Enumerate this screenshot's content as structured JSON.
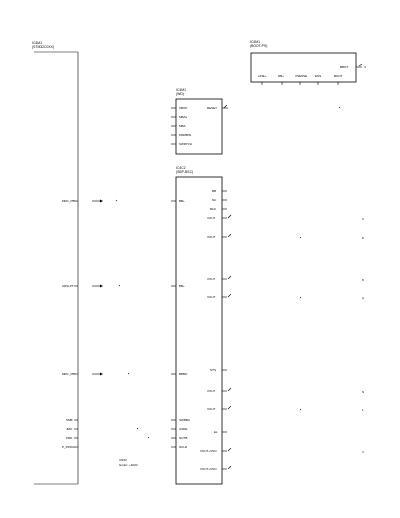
{
  "components": {
    "ic_left": {
      "ref": "IC4M1",
      "part": "(STM32C0XX)"
    },
    "ic_top": {
      "ref": "IC4M1",
      "part": "(BOOT-PS)"
    },
    "ic_mid": {
      "ref": "IC4M1",
      "part": "(WD)"
    },
    "ic_main": {
      "ref": "IC4C2",
      "part": "(SBP-BSC)"
    }
  },
  "top_pins": [
    "LINE+",
    "NB+",
    "VSENSE",
    "ENS",
    "BOOT"
  ],
  "top_pin_right": "BBOT",
  "mid_pins_left": [
    "VBOP",
    "MBAs",
    "MBA",
    "MSMBIN",
    "SWRTVH"
  ],
  "mid_pin_right": "RESET",
  "main_left_pins": [
    "BB+",
    "BB+",
    "BBBO",
    "SWBBA",
    "USDE",
    "NOTB",
    "NCLR"
  ],
  "main_right_pins": [
    "BB",
    "NC",
    "BLD",
    "VOUT",
    "VOUT",
    "VOUT",
    "VOUT",
    "NTS",
    "VOUT",
    "VOUT",
    "EL",
    "VOUT+VNO",
    "VOUT+VNO"
  ],
  "left_pins": [
    "MRC_PB",
    "ADSLPT",
    "MRC_PB",
    "SMB",
    "JMO",
    "PRD",
    "P_PROG"
  ],
  "signals": [
    "4",
    "0",
    "8",
    "8",
    "A",
    "N",
    "1",
    "4"
  ],
  "note": {
    "line1": "VN/M",
    "line2": "Gndor: +400V"
  }
}
